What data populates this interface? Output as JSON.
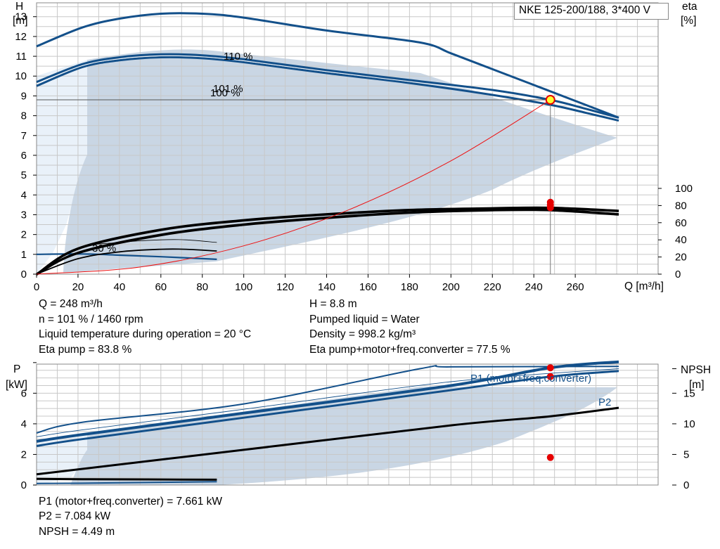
{
  "pump_label": "NKE 125-200/188, 3*400 V",
  "top_chart": {
    "y_axis_label": [
      "H",
      "[m]"
    ],
    "right_axis_label": [
      "eta",
      "[%]"
    ],
    "x_axis_label": "Q [m³/h]",
    "x_ticks": [
      "0",
      "20",
      "40",
      "60",
      "80",
      "100",
      "120",
      "140",
      "160",
      "180",
      "200",
      "220",
      "240",
      "260"
    ],
    "y_ticks": [
      "0",
      "1",
      "2",
      "3",
      "4",
      "5",
      "6",
      "7",
      "8",
      "9",
      "10",
      "11",
      "12",
      "13"
    ],
    "eta_ticks": [
      "0",
      "20",
      "40",
      "60",
      "80",
      "100"
    ],
    "curve_labels": {
      "max": "110 %",
      "op": "101 %",
      "nominal": "100 %",
      "min": "30 %"
    }
  },
  "top_info_left": [
    "Q = 248 m³/h",
    "n = 101 % / 1460 rpm",
    "Liquid temperature during operation = 20 °C",
    "Eta pump = 83.8 %"
  ],
  "top_info_right": [
    "H = 8.8 m",
    "Pumped liquid = Water",
    "Density = 998.2 kg/m³",
    "Eta pump+motor+freq.converter = 77.5 %"
  ],
  "bottom_chart": {
    "y_axis_label": [
      "P",
      "[kW]"
    ],
    "right_axis_label": [
      "NPSH",
      "[m]"
    ],
    "p_ticks": [
      "0",
      "2",
      "4",
      "6"
    ],
    "npsh_ticks": [
      "0",
      "5",
      "10",
      "15"
    ],
    "labels": {
      "p1": "P1 (motor+freq.converter)",
      "p2": "P2"
    }
  },
  "bottom_info": [
    "P1 (motor+freq.converter) = 7.661 kW",
    "P2 = 7.084 kW",
    "NPSH = 4.49 m"
  ],
  "colors": {
    "curve_blue": "#13508a",
    "area": "#c9d6e4",
    "area_light": "#e9f1f9",
    "grid": "#c8c8c8",
    "marker": "#e60000",
    "system_curve": "#ee1111",
    "op_fill": "#ffff33"
  },
  "chart_data": [
    {
      "type": "line",
      "title": "NKE 125-200/188, 3*400 V",
      "xlabel": "Q [m³/h]",
      "ylabel": "H [m]",
      "y2label": "eta [%]",
      "xlim": [
        0,
        300
      ],
      "ylim": [
        0,
        13.7
      ],
      "y2lim": [
        0,
        100
      ],
      "grid": true,
      "series": [
        {
          "name": "110 %",
          "x": [
            0,
            22,
            40,
            60,
            80,
            100,
            140,
            185,
            200,
            220,
            240,
            260,
            281
          ],
          "y": [
            11.5,
            12.45,
            12.9,
            13.15,
            13.15,
            12.95,
            12.3,
            11.7,
            11.15,
            10.35,
            9.55,
            8.75,
            7.9
          ]
        },
        {
          "name": "101 %",
          "x": [
            0,
            22,
            40,
            60,
            80,
            100,
            140,
            180,
            220,
            248,
            265,
            281
          ],
          "y": [
            9.7,
            10.6,
            10.95,
            11.1,
            11.05,
            10.85,
            10.3,
            9.8,
            9.3,
            8.8,
            8.35,
            7.9
          ]
        },
        {
          "name": "100 %",
          "x": [
            0,
            22,
            40,
            60,
            80,
            100,
            140,
            180,
            220,
            248,
            265,
            281
          ],
          "y": [
            9.5,
            10.45,
            10.8,
            10.95,
            10.9,
            10.7,
            10.15,
            9.65,
            9.05,
            8.55,
            8.15,
            7.75
          ]
        },
        {
          "name": "30 %",
          "x": [
            0,
            22,
            40,
            60,
            87
          ],
          "y": [
            1.0,
            1.02,
            0.96,
            0.88,
            0.75
          ]
        }
      ],
      "eta_series": [
        {
          "x": [
            0,
            20,
            60,
            100,
            140,
            180,
            220,
            248,
            281
          ],
          "y": [
            0,
            30,
            52,
            63,
            70,
            75,
            77,
            77.5,
            74
          ]
        },
        {
          "x": [
            0,
            20,
            60,
            100,
            140,
            180,
            220,
            248,
            281
          ],
          "y": [
            0,
            25,
            46,
            58,
            66,
            72,
            75,
            75,
            70
          ]
        }
      ],
      "system_curve": {
        "x": [
          0,
          50,
          100,
          150,
          200,
          248
        ],
        "y": [
          0,
          0.36,
          1.43,
          3.22,
          5.72,
          8.8
        ]
      },
      "operating_point": {
        "Q": 248,
        "H": 8.8,
        "eta": [
          77.5,
          83.8
        ]
      }
    },
    {
      "type": "line",
      "ylabel": "P [kW]",
      "y2label": "NPSH [m]",
      "xlim": [
        0,
        300
      ],
      "ylim": [
        0,
        7.9
      ],
      "y2lim": [
        0,
        19.75
      ],
      "grid": true,
      "series": [
        {
          "name": "P1 (motor+freq.converter)",
          "x": [
            0,
            22,
            100,
            200,
            248,
            281
          ],
          "y": [
            2.85,
            3.3,
            4.7,
            6.5,
            7.661,
            8.05
          ]
        },
        {
          "name": "P2",
          "x": [
            0,
            22,
            100,
            200,
            248,
            281
          ],
          "y": [
            2.55,
            3.0,
            4.4,
            6.2,
            7.084,
            7.45
          ]
        },
        {
          "name": "NPSH",
          "x": [
            0,
            100,
            200,
            248,
            281
          ],
          "y": [
            0.7,
            2.3,
            3.9,
            4.49,
            5.05
          ]
        }
      ],
      "operating_point": {
        "Q": 248,
        "P1": 7.661,
        "P2": 7.084,
        "NPSH": 4.49
      }
    }
  ]
}
